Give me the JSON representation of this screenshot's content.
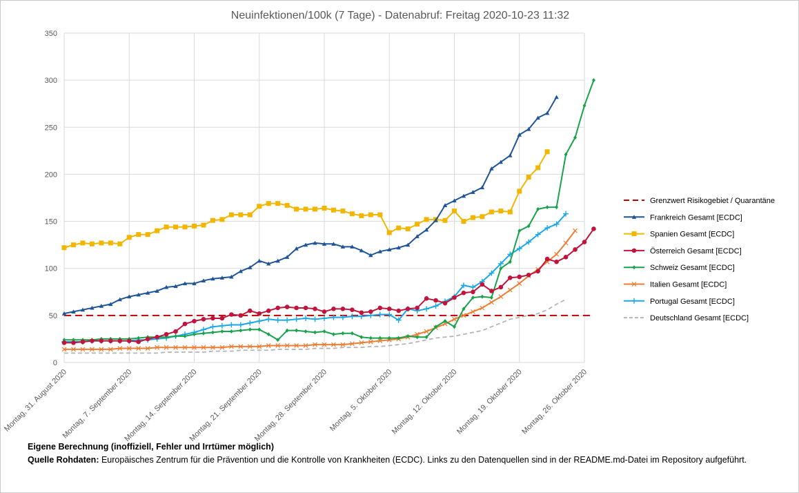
{
  "notes": {
    "line1_bold": "Eigene Berechnung  (inoffiziell, Fehler und Irrtümer möglich)",
    "line2_bold": "Quelle Rohdaten:",
    "line2_text": " Europäisches Zentrum für die Prävention und die Kontrolle von Krankheiten (ECDC). Links zu den Datenquellen sind in der README.md-Datei im Repository aufgeführt."
  },
  "chart_data": {
    "type": "line",
    "title": "Neuinfektionen/100k (7 Tage) - Datenabruf: Freitag 2020-10-23 11:32",
    "xlabel": "",
    "ylabel": "",
    "ylim": [
      0,
      350
    ],
    "yticks": [
      0,
      50,
      100,
      150,
      200,
      250,
      300,
      350
    ],
    "xticks": [
      "Montag, 31. August 2020",
      "Montag, 7. September 2020",
      "Montag, 14. September 2020",
      "Montag, 21. September 2020",
      "Montag, 28. September 2020",
      "Montag, 5. Oktober 2020",
      "Montag, 12. Oktober 2020",
      "Montag, 19. Oktober 2020",
      "Montag, 26. Oktober 2020"
    ],
    "x_start": "2020-08-31",
    "grid": true,
    "legend_position": "right",
    "series": [
      {
        "name": "Grenzwert Risikogebiet / Quarantäne",
        "color": "#c00000",
        "style": "dash",
        "marker": "none",
        "values": [
          50,
          50,
          50,
          50,
          50,
          50,
          50,
          50,
          50,
          50,
          50,
          50,
          50,
          50,
          50,
          50,
          50,
          50,
          50,
          50,
          50,
          50,
          50,
          50,
          50,
          50,
          50,
          50,
          50,
          50,
          50,
          50,
          50,
          50,
          50,
          50,
          50,
          50,
          50,
          50,
          50,
          50,
          50,
          50,
          50,
          50,
          50,
          50,
          50,
          50,
          50,
          50,
          50,
          50,
          50,
          50,
          50,
          50
        ]
      },
      {
        "name": "Frankreich Gesamt [ECDC]",
        "color": "#1f5597",
        "style": "solid",
        "marker": "triangle",
        "values": [
          52,
          54,
          56,
          58,
          60,
          62,
          67,
          70,
          72,
          74,
          76,
          80,
          81,
          84,
          84,
          87,
          89,
          90,
          91,
          97,
          101,
          108,
          105,
          108,
          112,
          121,
          125,
          127,
          126,
          126,
          123,
          123,
          119,
          114,
          118,
          120,
          122,
          125,
          134,
          141,
          151,
          167,
          172,
          177,
          181,
          186,
          206,
          213,
          220,
          242,
          248,
          260,
          265,
          282
        ]
      },
      {
        "name": "Spanien Gesamt [ECDC]",
        "color": "#f2b600",
        "style": "solid",
        "marker": "square",
        "values": [
          122,
          125,
          127,
          126,
          127,
          127,
          126,
          133,
          136,
          136,
          140,
          144,
          144,
          144,
          145,
          146,
          151,
          152,
          157,
          157,
          157,
          166,
          169,
          169,
          167,
          163,
          163,
          163,
          164,
          162,
          161,
          158,
          156,
          157,
          157,
          138,
          143,
          142,
          147,
          152,
          152,
          151,
          161,
          150,
          154,
          155,
          160,
          161,
          160,
          182,
          197,
          207,
          224
        ]
      },
      {
        "name": "Österreich Gesamt [ECDC]",
        "color": "#c0143c",
        "style": "solid",
        "marker": "circle",
        "values": [
          21,
          21,
          22,
          23,
          23,
          23,
          23,
          23,
          22,
          25,
          27,
          30,
          33,
          41,
          44,
          46,
          47,
          47,
          51,
          50,
          55,
          52,
          55,
          58,
          59,
          58,
          58,
          57,
          54,
          57,
          57,
          56,
          53,
          54,
          58,
          57,
          55,
          57,
          58,
          68,
          66,
          63,
          69,
          74,
          75,
          83,
          76,
          80,
          90,
          91,
          93,
          97,
          110,
          107,
          112,
          120,
          128,
          142
        ]
      },
      {
        "name": "Schweiz Gesamt [ECDC]",
        "color": "#17a34a",
        "style": "solid",
        "marker": "diamond",
        "values": [
          24,
          24,
          24,
          24,
          25,
          25,
          25,
          25,
          26,
          27,
          27,
          27,
          28,
          28,
          30,
          31,
          32,
          33,
          33,
          34,
          35,
          35,
          30,
          24,
          34,
          34,
          33,
          32,
          33,
          30,
          31,
          31,
          27,
          26,
          26,
          26,
          26,
          28,
          27,
          27,
          38,
          44,
          38,
          57,
          69,
          70,
          69,
          100,
          107,
          140,
          145,
          163,
          165,
          165,
          221,
          239,
          273,
          300
        ]
      },
      {
        "name": "Italien Gesamt [ECDC]",
        "color": "#ed7d31",
        "style": "solid",
        "marker": "x",
        "values": [
          14,
          14,
          14,
          14,
          14,
          14,
          15,
          15,
          15,
          15,
          16,
          16,
          16,
          16,
          16,
          16,
          16,
          16,
          17,
          17,
          17,
          17,
          18,
          18,
          18,
          18,
          18,
          19,
          19,
          19,
          19,
          20,
          21,
          22,
          23,
          24,
          25,
          27,
          30,
          33,
          37,
          41,
          46,
          50,
          54,
          58,
          64,
          70,
          77,
          84,
          92,
          99,
          107,
          115,
          127,
          140
        ]
      },
      {
        "name": "Portugal Gesamt [ECDC]",
        "color": "#1aa7e6",
        "style": "solid",
        "marker": "plus",
        "values": [
          22,
          22,
          22,
          23,
          23,
          23,
          23,
          23,
          24,
          24,
          25,
          26,
          28,
          30,
          32,
          35,
          38,
          39,
          40,
          40,
          42,
          44,
          46,
          45,
          45,
          46,
          47,
          46,
          47,
          48,
          48,
          49,
          49,
          50,
          51,
          51,
          45,
          57,
          55,
          57,
          60,
          65,
          70,
          82,
          80,
          86,
          95,
          105,
          115,
          121,
          128,
          136,
          143,
          147,
          158
        ]
      },
      {
        "name": "Deutschland Gesamt [ECDC]",
        "color": "#b4b4b4",
        "style": "dash",
        "marker": "none",
        "values": [
          10,
          10,
          10,
          10,
          10,
          10,
          10,
          10,
          10,
          10,
          10,
          11,
          11,
          11,
          11,
          11,
          12,
          12,
          12,
          13,
          13,
          13,
          13,
          14,
          14,
          14,
          14,
          15,
          15,
          15,
          16,
          16,
          16,
          17,
          17,
          18,
          19,
          20,
          22,
          24,
          26,
          27,
          28,
          30,
          32,
          34,
          38,
          42,
          46,
          48,
          50,
          52,
          56,
          62,
          67
        ]
      }
    ]
  }
}
